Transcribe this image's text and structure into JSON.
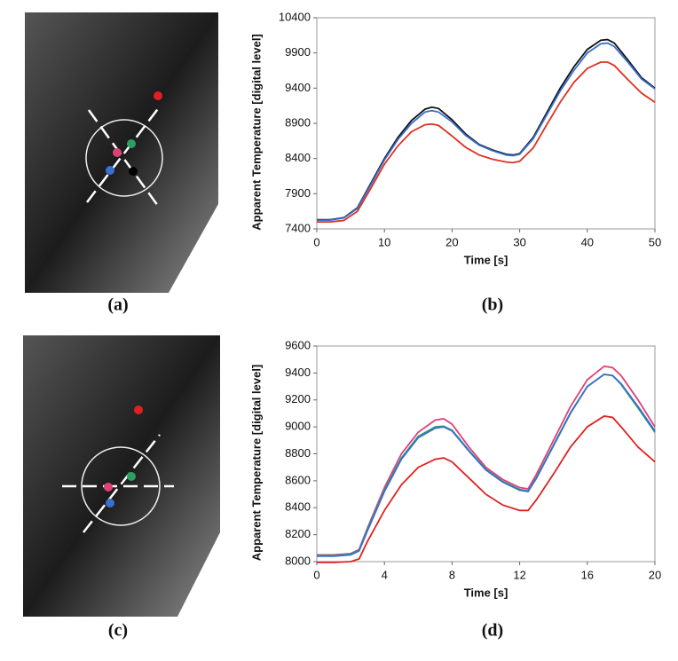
{
  "panel_labels": [
    "(a)",
    "(b)",
    "(c)",
    "(d)"
  ],
  "chart_data": [
    {
      "type": "line",
      "xlabel": "Time [s]",
      "ylabel": "Apparent Temperature [digital level]",
      "x": [
        0,
        2,
        4,
        6,
        8,
        10,
        12,
        14,
        16,
        17,
        18,
        20,
        22,
        24,
        26,
        28,
        29,
        30,
        32,
        34,
        36,
        38,
        40,
        42,
        43,
        44,
        46,
        48,
        50
      ],
      "xlim": [
        0,
        50
      ],
      "xticks": [
        0,
        10,
        20,
        30,
        40,
        50
      ],
      "ylim": [
        7400,
        10400
      ],
      "yticks": [
        7400,
        7900,
        8400,
        8900,
        9400,
        9900,
        10400
      ],
      "series": [
        {
          "color": "#111111",
          "values": [
            7530,
            7530,
            7560,
            7700,
            8050,
            8400,
            8700,
            8940,
            9100,
            9130,
            9110,
            8950,
            8750,
            8600,
            8520,
            8460,
            8450,
            8470,
            8700,
            9050,
            9400,
            9700,
            9950,
            10080,
            10090,
            10040,
            9800,
            9550,
            9400
          ]
        },
        {
          "color": "#3a6fd0",
          "values": [
            7525,
            7525,
            7555,
            7690,
            8030,
            8380,
            8670,
            8900,
            9060,
            9080,
            9060,
            8920,
            8730,
            8590,
            8510,
            8450,
            8440,
            8460,
            8680,
            9020,
            9360,
            9650,
            9900,
            10030,
            10040,
            9990,
            9770,
            9530,
            9390
          ]
        },
        {
          "color": "#e03020",
          "values": [
            7500,
            7500,
            7520,
            7650,
            7980,
            8320,
            8580,
            8780,
            8880,
            8890,
            8870,
            8720,
            8560,
            8450,
            8390,
            8350,
            8340,
            8360,
            8550,
            8880,
            9200,
            9480,
            9680,
            9770,
            9770,
            9720,
            9520,
            9330,
            9200
          ]
        }
      ]
    },
    {
      "type": "line",
      "xlabel": "Time [s]",
      "ylabel": "Apparent Temperature [digital level]",
      "x": [
        0,
        1,
        2,
        2.5,
        3,
        4,
        5,
        6,
        7,
        7.5,
        8,
        9,
        10,
        11,
        12,
        12.5,
        13,
        14,
        15,
        16,
        17,
        17.5,
        18,
        19,
        20
      ],
      "xlim": [
        0,
        20
      ],
      "xticks": [
        0,
        4,
        8,
        12,
        16,
        20
      ],
      "ylim": [
        8000,
        9600
      ],
      "yticks": [
        8000,
        8200,
        8400,
        8600,
        8800,
        9000,
        9200,
        9400,
        9600
      ],
      "series": [
        {
          "color": "#e0407a",
          "values": [
            8050,
            8050,
            8060,
            8090,
            8250,
            8550,
            8800,
            8960,
            9050,
            9060,
            9020,
            8850,
            8700,
            8610,
            8550,
            8540,
            8650,
            8900,
            9150,
            9350,
            9450,
            9440,
            9380,
            9200,
            9000
          ]
        },
        {
          "color": "#2ca060",
          "values": [
            8045,
            8045,
            8055,
            8085,
            8240,
            8530,
            8770,
            8930,
            9000,
            9005,
            8975,
            8825,
            8685,
            8595,
            8535,
            8525,
            8625,
            8865,
            9105,
            9300,
            9390,
            9380,
            9315,
            9140,
            8960
          ]
        },
        {
          "color": "#3a6fd0",
          "values": [
            8040,
            8040,
            8050,
            8080,
            8230,
            8520,
            8760,
            8920,
            8990,
            9000,
            8970,
            8820,
            8680,
            8590,
            8530,
            8520,
            8620,
            8860,
            9100,
            9300,
            9390,
            9380,
            9320,
            9150,
            8970
          ]
        },
        {
          "color": "#e02020",
          "values": [
            7995,
            7995,
            8000,
            8020,
            8150,
            8380,
            8570,
            8700,
            8760,
            8770,
            8740,
            8620,
            8500,
            8420,
            8380,
            8380,
            8460,
            8650,
            8850,
            9000,
            9080,
            9070,
            9000,
            8850,
            8740
          ]
        }
      ]
    }
  ]
}
